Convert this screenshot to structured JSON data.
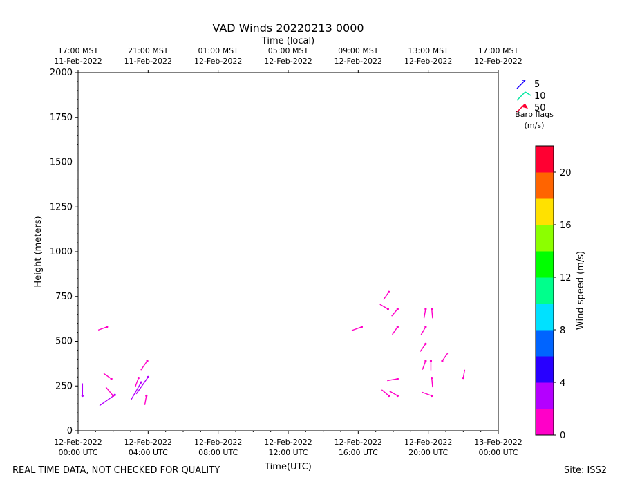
{
  "chart_data": {
    "type": "scatter",
    "title": "VAD Winds 20220213 0000",
    "xlabel": "Time(UTC)",
    "xlabel_top": "Time (local)",
    "ylabel": "Height (meters)",
    "xlim_hours": [
      0,
      24
    ],
    "ylim": [
      0,
      2000
    ],
    "xticks": [
      {
        "h": 0,
        "top": [
          "17:00 MST",
          "11-Feb-2022"
        ],
        "bottom": [
          "12-Feb-2022",
          "00:00 UTC"
        ]
      },
      {
        "h": 4,
        "top": [
          "21:00 MST",
          "11-Feb-2022"
        ],
        "bottom": [
          "12-Feb-2022",
          "04:00 UTC"
        ]
      },
      {
        "h": 8,
        "top": [
          "01:00 MST",
          "12-Feb-2022"
        ],
        "bottom": [
          "12-Feb-2022",
          "08:00 UTC"
        ]
      },
      {
        "h": 12,
        "top": [
          "05:00 MST",
          "12-Feb-2022"
        ],
        "bottom": [
          "12-Feb-2022",
          "12:00 UTC"
        ]
      },
      {
        "h": 16,
        "top": [
          "09:00 MST",
          "12-Feb-2022"
        ],
        "bottom": [
          "12-Feb-2022",
          "16:00 UTC"
        ]
      },
      {
        "h": 20,
        "top": [
          "13:00 MST",
          "12-Feb-2022"
        ],
        "bottom": [
          "12-Feb-2022",
          "20:00 UTC"
        ]
      },
      {
        "h": 24,
        "top": [
          "17:00 MST",
          "12-Feb-2022"
        ],
        "bottom": [
          "13-Feb-2022",
          "00:00 UTC"
        ]
      }
    ],
    "yticks": [
      0,
      250,
      500,
      750,
      1000,
      1250,
      1500,
      1750,
      2000
    ],
    "barbs_note": "each barb: time (hours since 12-Feb-2022 00:00 UTC), height (m), speed (m/s), direction (deg from north)",
    "barbs": [
      {
        "t": 0.25,
        "h": 195,
        "spd": 2.0,
        "dir": 0
      },
      {
        "t": 1.65,
        "h": 580,
        "spd": 1.5,
        "dir": 250
      },
      {
        "t": 1.9,
        "h": 290,
        "spd": 1.5,
        "dir": 305
      },
      {
        "t": 2.1,
        "h": 200,
        "spd": 3.0,
        "dir": 235
      },
      {
        "t": 2.0,
        "h": 195,
        "spd": 1.8,
        "dir": 320
      },
      {
        "t": 3.45,
        "h": 295,
        "spd": 1.5,
        "dir": 200
      },
      {
        "t": 3.6,
        "h": 270,
        "spd": 3.2,
        "dir": 210
      },
      {
        "t": 3.9,
        "h": 195,
        "spd": 1.5,
        "dir": 190
      },
      {
        "t": 3.95,
        "h": 390,
        "spd": 1.8,
        "dir": 215
      },
      {
        "t": 4.0,
        "h": 300,
        "spd": 3.5,
        "dir": 215
      },
      {
        "t": 16.2,
        "h": 580,
        "spd": 1.7,
        "dir": 250
      },
      {
        "t": 17.75,
        "h": 775,
        "spd": 1.5,
        "dir": 215
      },
      {
        "t": 17.7,
        "h": 680,
        "spd": 1.5,
        "dir": 300
      },
      {
        "t": 18.25,
        "h": 680,
        "spd": 1.5,
        "dir": 220
      },
      {
        "t": 18.25,
        "h": 580,
        "spd": 1.5,
        "dir": 215
      },
      {
        "t": 18.25,
        "h": 290,
        "spd": 1.7,
        "dir": 260
      },
      {
        "t": 17.75,
        "h": 195,
        "spd": 1.5,
        "dir": 310
      },
      {
        "t": 18.25,
        "h": 195,
        "spd": 1.5,
        "dir": 300
      },
      {
        "t": 19.85,
        "h": 680,
        "spd": 1.5,
        "dir": 190
      },
      {
        "t": 20.2,
        "h": 680,
        "spd": 1.5,
        "dir": 175
      },
      {
        "t": 19.85,
        "h": 580,
        "spd": 1.5,
        "dir": 210
      },
      {
        "t": 19.85,
        "h": 485,
        "spd": 1.5,
        "dir": 215
      },
      {
        "t": 20.15,
        "h": 390,
        "spd": 1.5,
        "dir": 180
      },
      {
        "t": 19.85,
        "h": 390,
        "spd": 1.5,
        "dir": 200
      },
      {
        "t": 20.8,
        "h": 390,
        "spd": 1.5,
        "dir": 35
      },
      {
        "t": 20.2,
        "h": 295,
        "spd": 1.5,
        "dir": 175
      },
      {
        "t": 20.2,
        "h": 195,
        "spd": 1.7,
        "dir": 290
      },
      {
        "t": 22.0,
        "h": 295,
        "spd": 1.3,
        "dir": 10
      }
    ],
    "colorbar": {
      "label": "Wind speed (m/s)",
      "min": 0,
      "max": 22,
      "ticks": [
        0,
        4,
        8,
        12,
        16,
        20
      ],
      "colors": [
        "#ff00c8",
        "#b400ff",
        "#2800ff",
        "#0064ff",
        "#00e1ff",
        "#00ff8c",
        "#00ff00",
        "#8cff00",
        "#ffe100",
        "#ff6400",
        "#ff0032"
      ]
    },
    "legend": {
      "items": [
        {
          "label": "5",
          "color": "#1a00ff"
        },
        {
          "label": "10",
          "color": "#00e6a0"
        },
        {
          "label": "50",
          "color": "#ff0032"
        }
      ],
      "title_line1": "Barb flags",
      "title_line2": "(m/s)"
    }
  },
  "footer": {
    "left": "REAL TIME DATA, NOT CHECKED FOR QUALITY",
    "right": "Site: ISS2"
  }
}
